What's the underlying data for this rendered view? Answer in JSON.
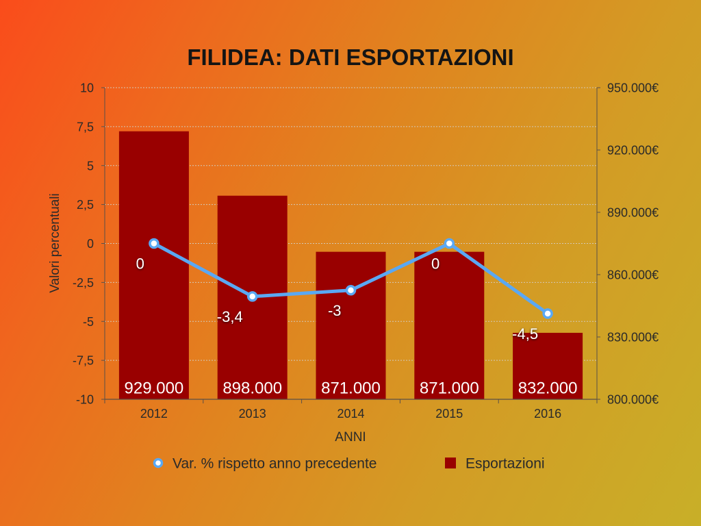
{
  "chart_data": {
    "type": "bar",
    "title": "FILIDEA: DATI ESPORTAZIONI",
    "xlabel": "ANNI",
    "ylabel": "Valori percentuali",
    "categories": [
      "2012",
      "2013",
      "2014",
      "2015",
      "2016"
    ],
    "ylim": [
      -10,
      10
    ],
    "y_ticks": [
      {
        "value": 10,
        "label": "10"
      },
      {
        "value": 7.5,
        "label": "7,5"
      },
      {
        "value": 5,
        "label": "5"
      },
      {
        "value": 2.5,
        "label": "2,5"
      },
      {
        "value": 0,
        "label": "0"
      },
      {
        "value": -2.5,
        "label": "-2,5"
      },
      {
        "value": -5,
        "label": "-5"
      },
      {
        "value": -7.5,
        "label": "-7,5"
      },
      {
        "value": -10,
        "label": "-10"
      }
    ],
    "y2lim": [
      800000,
      950000
    ],
    "y2_ticks": [
      {
        "value": 950000,
        "label": "950.000€"
      },
      {
        "value": 920000,
        "label": "920.000€"
      },
      {
        "value": 890000,
        "label": "890.000€"
      },
      {
        "value": 860000,
        "label": "860.000€"
      },
      {
        "value": 830000,
        "label": "830.000€"
      },
      {
        "value": 800000,
        "label": "800.000€"
      }
    ],
    "grid": true,
    "legend": "bottom",
    "series": [
      {
        "name": "Var. % rispetto anno precedente",
        "type": "line",
        "secondary_axis": false,
        "marker": "circle",
        "color": "#5AA8F3",
        "values": [
          0,
          -3.4,
          -3,
          0,
          -4.5
        ],
        "labels": [
          "0",
          "-3,4",
          "-3",
          "0",
          "-4,5"
        ]
      },
      {
        "name": "Esportazioni",
        "type": "bar",
        "secondary_axis": true,
        "color": "#990000",
        "values": [
          929000,
          898000,
          871000,
          871000,
          832000
        ],
        "labels": [
          "929.000",
          "898.000",
          "871.000",
          "871.000",
          "832.000"
        ]
      }
    ]
  }
}
